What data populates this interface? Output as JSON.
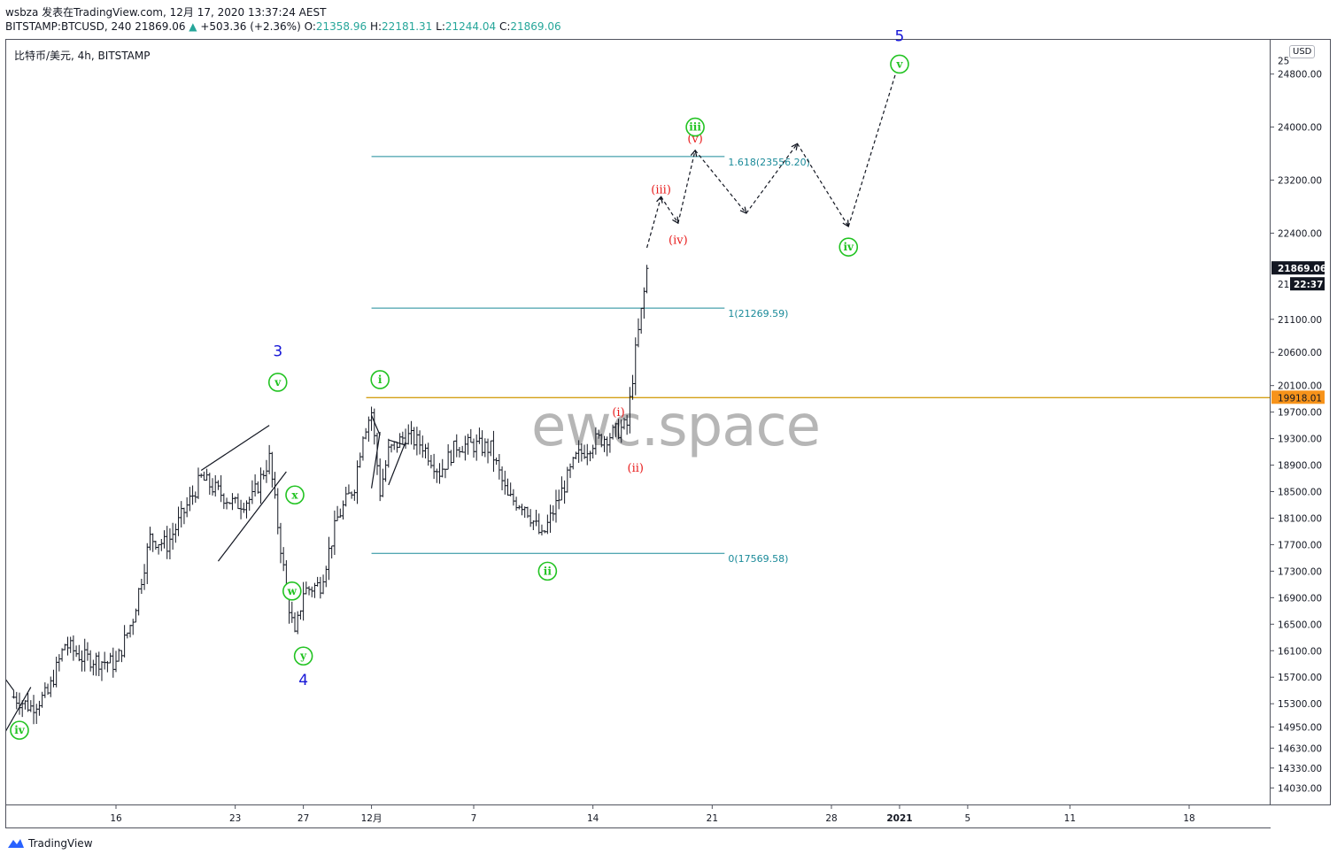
{
  "header": {
    "line1": "wsbza 发表在TradingView.com, 12月 17, 2020 13:37:24 AEST",
    "symbol": "BITSTAMP:BTCUSD, 240",
    "last": "21869.06",
    "change": "+503.36 (+2.36%)",
    "o": "21358.96",
    "h": "22181.31",
    "l": "21244.04",
    "c": "21869.06",
    "o_label": "O:",
    "h_label": "H:",
    "l_label": "L:",
    "c_label": "C:"
  },
  "symbol_line": "比特币/美元, 4h, BITSTAMP",
  "currency_badge": "USD",
  "watermark": "ewc.space",
  "footer": {
    "logo_icon": "tradingview-logo-icon",
    "text": "TradingView"
  },
  "colors": {
    "bar": "#131722",
    "fib_line": "#1a8a99",
    "fib_text": "#1a8a99",
    "horizontal_line": "#d4a017",
    "last_price_bg": "#131722",
    "hline_price_bg": "#f7931a",
    "wave_green": "#22c322",
    "wave_red": "#e81c1c",
    "wave_blue": "#1515d6"
  },
  "chart_data": {
    "type": "ohlc",
    "symbol": "BTCUSD",
    "interval": "4h",
    "ylim": [
      13780,
      25330
    ],
    "price_ticks": [
      "24800.00",
      "24000.00",
      "23200.00",
      "22400.00",
      "21100.00",
      "20600.00",
      "20100.00",
      "19700.00",
      "19300.00",
      "18900.00",
      "18500.00",
      "18100.00",
      "17700.00",
      "17300.00",
      "16900.00",
      "16500.00",
      "16100.00",
      "15700.00",
      "15300.00",
      "14950.00",
      "14630.00",
      "14330.00",
      "14030.00"
    ],
    "price_tick_partial": "25",
    "time_ticks": [
      {
        "label": "16",
        "date": "2020-11-16"
      },
      {
        "label": "23",
        "date": "2020-11-23"
      },
      {
        "label": "27",
        "date": "2020-11-27"
      },
      {
        "label": "12月",
        "date": "2020-12-01"
      },
      {
        "label": "7",
        "date": "2020-12-07"
      },
      {
        "label": "14",
        "date": "2020-12-14"
      },
      {
        "label": "21",
        "date": "2020-12-21"
      },
      {
        "label": "28",
        "date": "2020-12-28"
      },
      {
        "label": "2021",
        "date": "2021-01-01"
      },
      {
        "label": "5",
        "date": "2021-01-05"
      },
      {
        "label": "11",
        "date": "2021-01-11"
      },
      {
        "label": "18",
        "date": "2021-01-18"
      }
    ],
    "price_path": [
      [
        "2020-11-10",
        15400
      ],
      [
        "2020-11-11",
        15250
      ],
      [
        "2020-11-12",
        15450
      ],
      [
        "2020-11-13",
        16200
      ],
      [
        "2020-11-14",
        16000
      ],
      [
        "2020-11-15",
        15950
      ],
      [
        "2020-11-16",
        15900
      ],
      [
        "2020-11-17",
        16600
      ],
      [
        "2020-11-18",
        17800
      ],
      [
        "2020-11-19",
        17700
      ],
      [
        "2020-11-20",
        18200
      ],
      [
        "2020-11-21",
        18700
      ],
      [
        "2020-11-22",
        18500
      ],
      [
        "2020-11-23",
        18300
      ],
      [
        "2020-11-24",
        18400
      ],
      [
        "2020-11-25",
        19000
      ],
      [
        "2020-11-26",
        17000
      ],
      [
        "2020-11-26 12:00",
        16300
      ],
      [
        "2020-11-27",
        17000
      ],
      [
        "2020-11-28",
        17100
      ],
      [
        "2020-11-29",
        18100
      ],
      [
        "2020-11-30",
        18600
      ],
      [
        "2020-11-30 12:00",
        19400
      ],
      [
        "2020-12-01",
        19700
      ],
      [
        "2020-12-01 12:00",
        18500
      ],
      [
        "2020-12-02",
        19100
      ],
      [
        "2020-12-03",
        19350
      ],
      [
        "2020-12-04",
        19200
      ],
      [
        "2020-12-05",
        18800
      ],
      [
        "2020-12-06",
        19200
      ],
      [
        "2020-12-07",
        19200
      ],
      [
        "2020-12-08",
        19150
      ],
      [
        "2020-12-09",
        18400
      ],
      [
        "2020-12-10",
        18300
      ],
      [
        "2020-12-11",
        17800
      ],
      [
        "2020-12-12",
        18400
      ],
      [
        "2020-12-13",
        19000
      ],
      [
        "2020-12-14",
        19250
      ],
      [
        "2020-12-15",
        19350
      ],
      [
        "2020-12-16",
        19500
      ],
      [
        "2020-12-16 12:00",
        20600
      ],
      [
        "2020-12-17",
        21500
      ],
      [
        "2020-12-17 04:00",
        21869.06
      ]
    ],
    "last_price": {
      "value": 21869.06,
      "label": "21869.06",
      "countdown": "22:37",
      "partial_tick": "21"
    },
    "horizontal_line": {
      "value": 19918.01,
      "label": "19918.01",
      "from_date": "2020-12-01"
    },
    "fibonacci": [
      {
        "level": "1.618",
        "price": 23556.2,
        "label": "1.618(23556.20)"
      },
      {
        "level": "1",
        "price": 21269.59,
        "label": "1(21269.59)"
      },
      {
        "level": "0",
        "price": 17569.58,
        "label": "0(17569.58)"
      }
    ],
    "trendlines": [
      {
        "from": [
          "2020-11-09",
          14650
        ],
        "to": [
          "2020-11-11",
          15550
        ]
      },
      {
        "from": [
          "2020-11-09",
          15850
        ],
        "to": [
          "2020-11-10",
          15500
        ]
      },
      {
        "from": [
          "2020-11-21",
          18820
        ],
        "to": [
          "2020-11-25",
          19500
        ]
      },
      {
        "from": [
          "2020-11-22",
          17450
        ],
        "to": [
          "2020-11-26",
          18800
        ]
      },
      {
        "from": [
          "2020-12-01",
          19650
        ],
        "to": [
          "2020-12-01 12:00",
          19350
        ]
      },
      {
        "from": [
          "2020-12-01",
          18550
        ],
        "to": [
          "2020-12-01 12:00",
          19400
        ]
      },
      {
        "from": [
          "2020-12-02",
          19280
        ],
        "to": [
          "2020-12-03",
          19200
        ]
      },
      {
        "from": [
          "2020-12-02",
          18600
        ],
        "to": [
          "2020-12-03",
          19250
        ]
      }
    ],
    "projection": [
      [
        "2020-12-17 04:00",
        22180
      ],
      [
        "2020-12-18",
        22950
      ],
      [
        "2020-12-19",
        22550
      ],
      [
        "2020-12-20",
        23650
      ],
      [
        "2020-12-23",
        22700
      ],
      [
        "2020-12-26",
        23750
      ],
      [
        "2020-12-29",
        22500
      ],
      [
        "2021-01-01",
        25000
      ]
    ],
    "wave_labels": [
      {
        "text": "iv",
        "style": "circle",
        "color": "green",
        "date": "2020-11-10 08:00",
        "price": 14900
      },
      {
        "text": "v",
        "style": "circle",
        "color": "green",
        "date": "2020-11-25 12:00",
        "price": 20150
      },
      {
        "text": "3",
        "style": "plain",
        "color": "blue",
        "date": "2020-11-25 12:00",
        "price": 20620
      },
      {
        "text": "x",
        "style": "circle",
        "color": "green",
        "date": "2020-11-26 12:00",
        "price": 18450
      },
      {
        "text": "w",
        "style": "circle",
        "color": "green",
        "date": "2020-11-26 08:00",
        "price": 17000
      },
      {
        "text": "y",
        "style": "circle",
        "color": "green",
        "date": "2020-11-27",
        "price": 16020
      },
      {
        "text": "4",
        "style": "plain",
        "color": "blue",
        "date": "2020-11-27",
        "price": 15660
      },
      {
        "text": "i",
        "style": "circle",
        "color": "green",
        "date": "2020-12-01 12:00",
        "price": 20190
      },
      {
        "text": "ii",
        "style": "circle",
        "color": "green",
        "date": "2020-12-11 08:00",
        "price": 17300
      },
      {
        "text": "(i)",
        "style": "plain",
        "color": "red",
        "date": "2020-12-15 12:00",
        "price": 19720
      },
      {
        "text": "(ii)",
        "style": "plain",
        "color": "red",
        "date": "2020-12-16 12:00",
        "price": 18880
      },
      {
        "text": "(iii)",
        "style": "plain",
        "color": "red",
        "date": "2020-12-18",
        "price": 23080
      },
      {
        "text": "(iv)",
        "style": "plain",
        "color": "red",
        "date": "2020-12-19",
        "price": 22320
      },
      {
        "text": "(v)",
        "style": "plain",
        "color": "red",
        "date": "2020-12-20",
        "price": 23850
      },
      {
        "text": "iii",
        "style": "circle",
        "color": "green",
        "date": "2020-12-20",
        "price": 24000
      },
      {
        "text": "iv",
        "style": "circle",
        "color": "green",
        "date": "2020-12-29",
        "price": 22190
      },
      {
        "text": "v",
        "style": "circle",
        "color": "green",
        "date": "2021-01-01",
        "price": 24950
      },
      {
        "text": "5",
        "style": "plain",
        "color": "blue",
        "date": "2021-01-01",
        "price": 25380
      }
    ]
  }
}
